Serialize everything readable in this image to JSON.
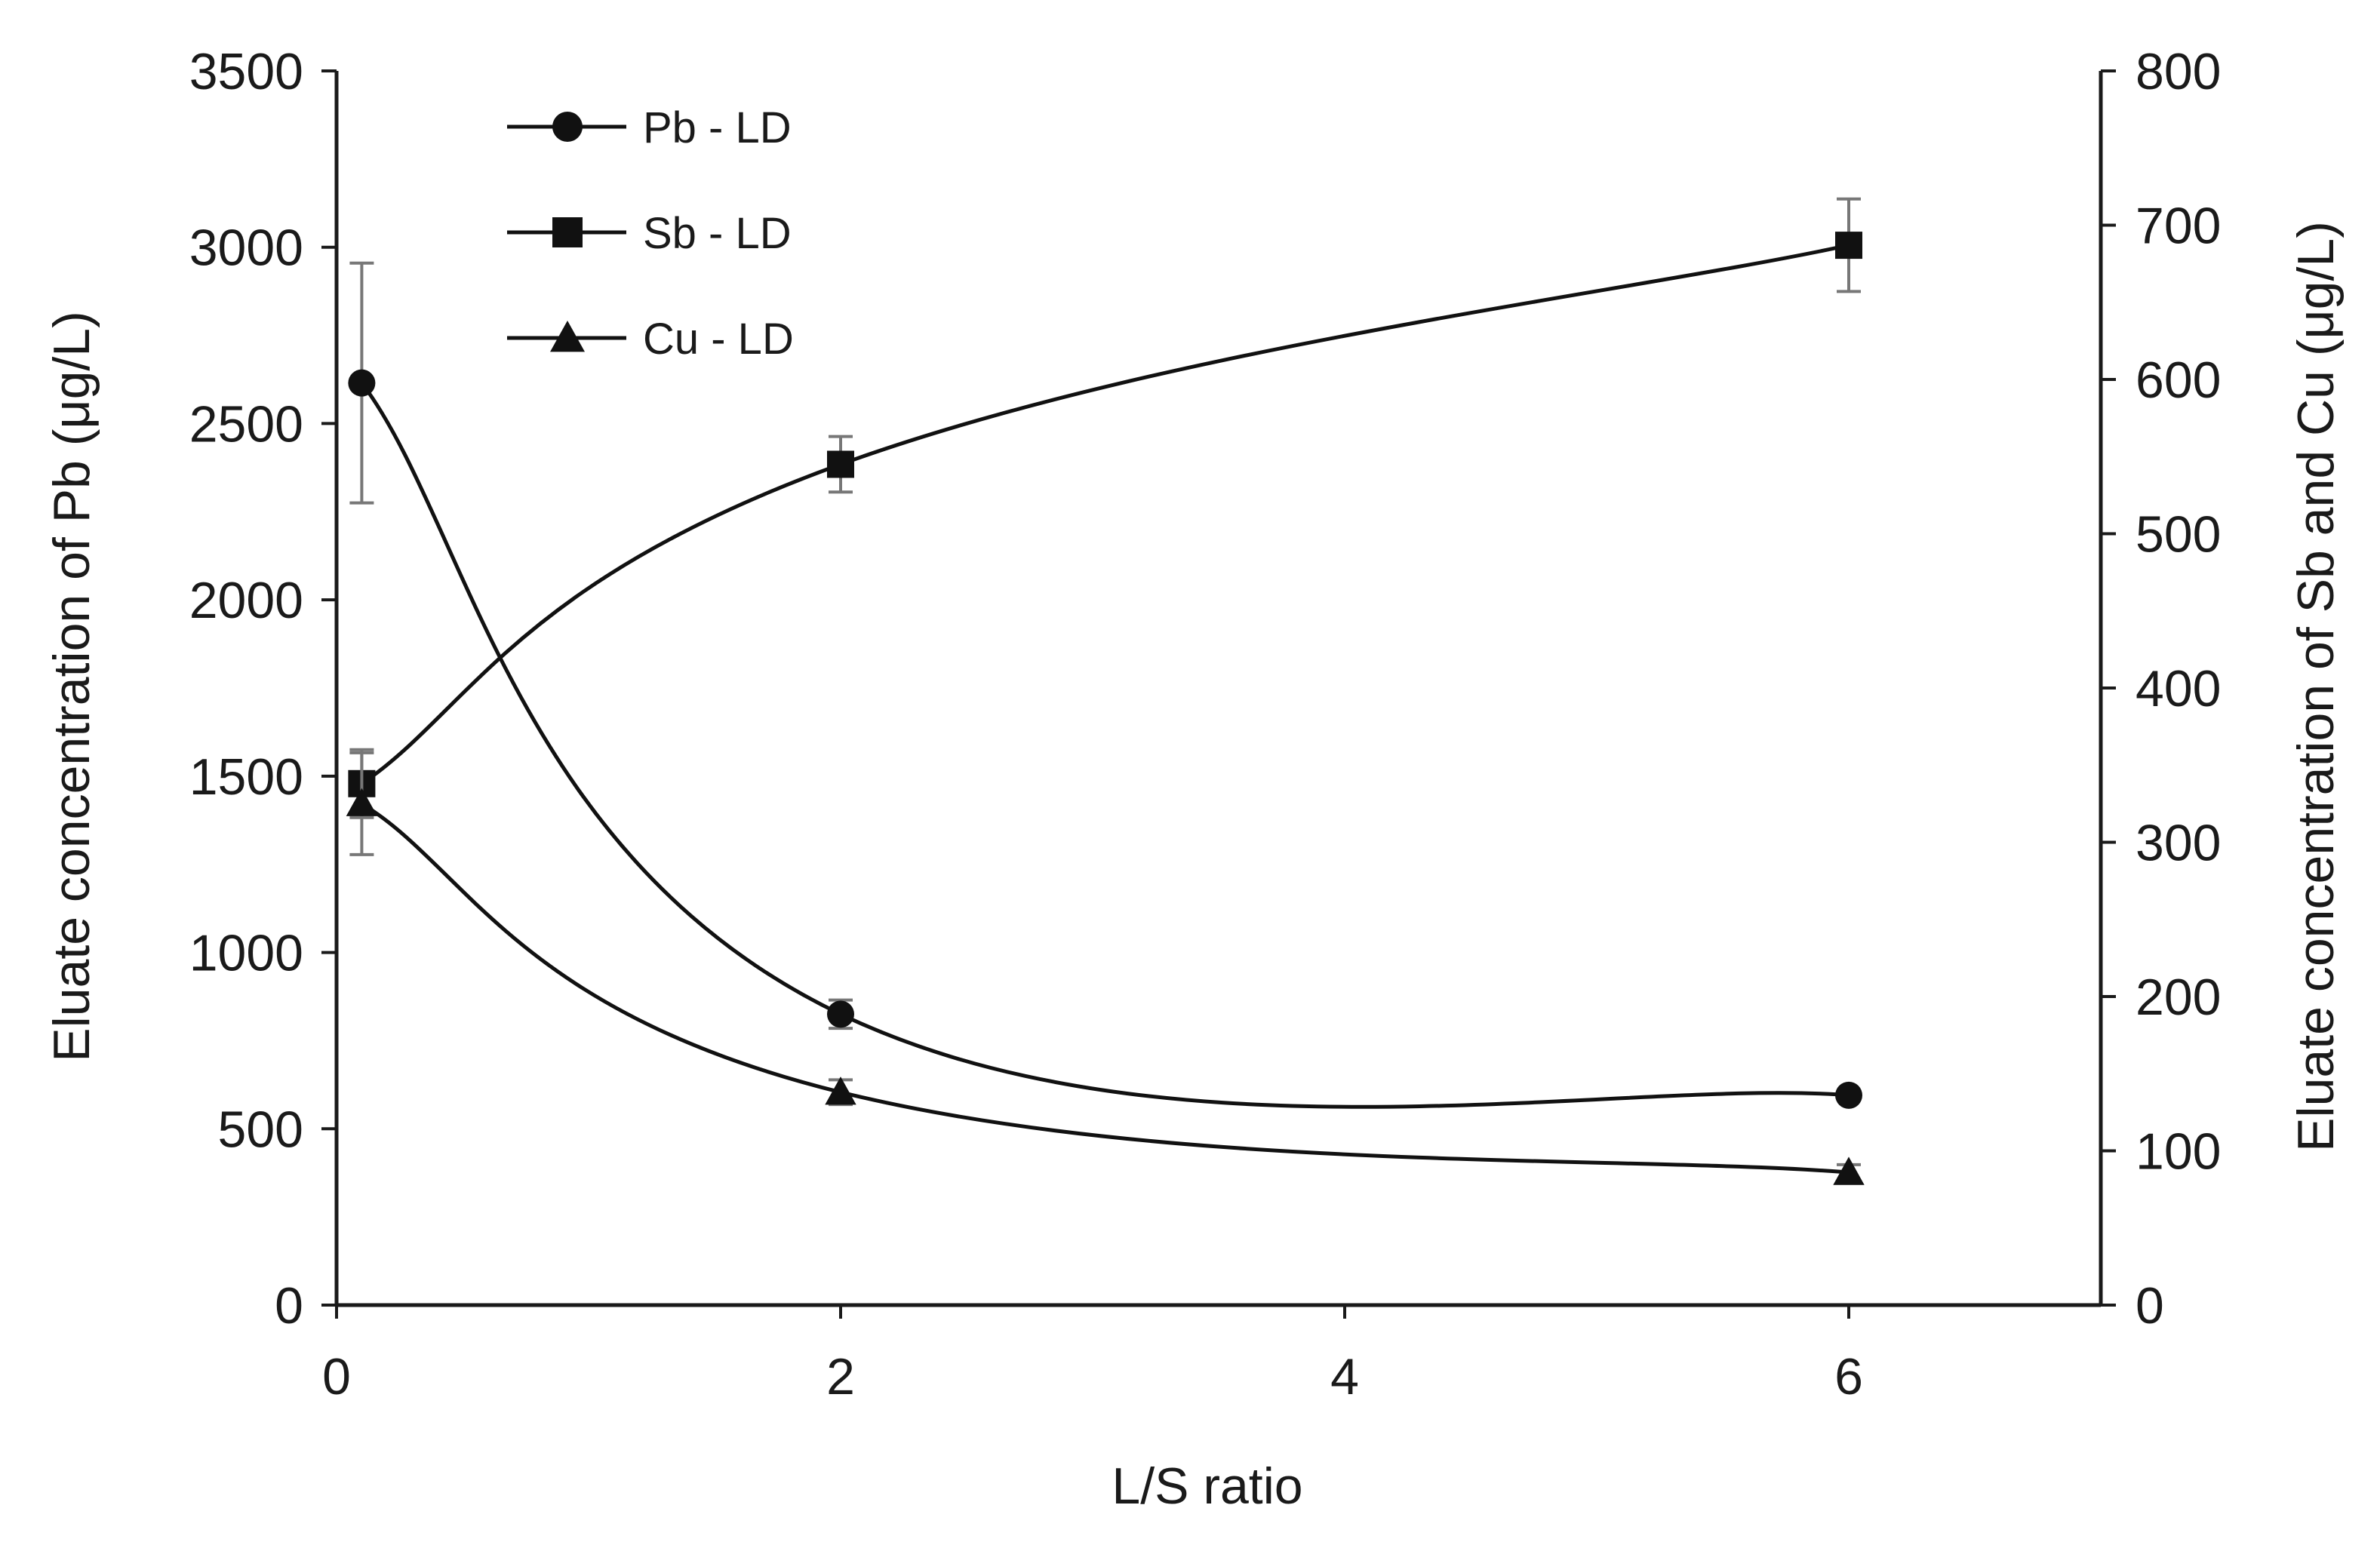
{
  "chart_data": {
    "type": "line",
    "x_axis": {
      "label": "L/S ratio",
      "range": [
        0,
        7
      ],
      "ticks": [
        0,
        2,
        4,
        6
      ]
    },
    "y_axis_left": {
      "label": "Eluate concentration of Pb (μg/L)",
      "range": [
        0,
        3500
      ],
      "ticks": [
        0,
        500,
        1000,
        1500,
        2000,
        2500,
        3000,
        3500
      ]
    },
    "y_axis_right": {
      "label": "Eluate concentration of Sb and Cu (μg/L)",
      "range": [
        0,
        800
      ],
      "ticks": [
        0,
        100,
        200,
        300,
        400,
        500,
        600,
        700,
        800
      ]
    },
    "legend_position": "top-left",
    "grid": false,
    "series": [
      {
        "name": "Pb - LD",
        "axis": "left",
        "marker": "circle",
        "x": [
          0.1,
          2,
          6
        ],
        "y": [
          2615,
          825,
          595
        ],
        "error": [
          340,
          40,
          0
        ]
      },
      {
        "name": "Sb - LD",
        "axis": "right",
        "marker": "square",
        "x": [
          0.1,
          2,
          6
        ],
        "y": [
          338,
          545,
          687
        ],
        "error": [
          22,
          18,
          30
        ]
      },
      {
        "name": "Cu - LD",
        "axis": "right",
        "marker": "triangle",
        "x": [
          0.1,
          2,
          6
        ],
        "y": [
          325,
          138,
          86
        ],
        "error": [
          33,
          8,
          5
        ]
      }
    ]
  }
}
